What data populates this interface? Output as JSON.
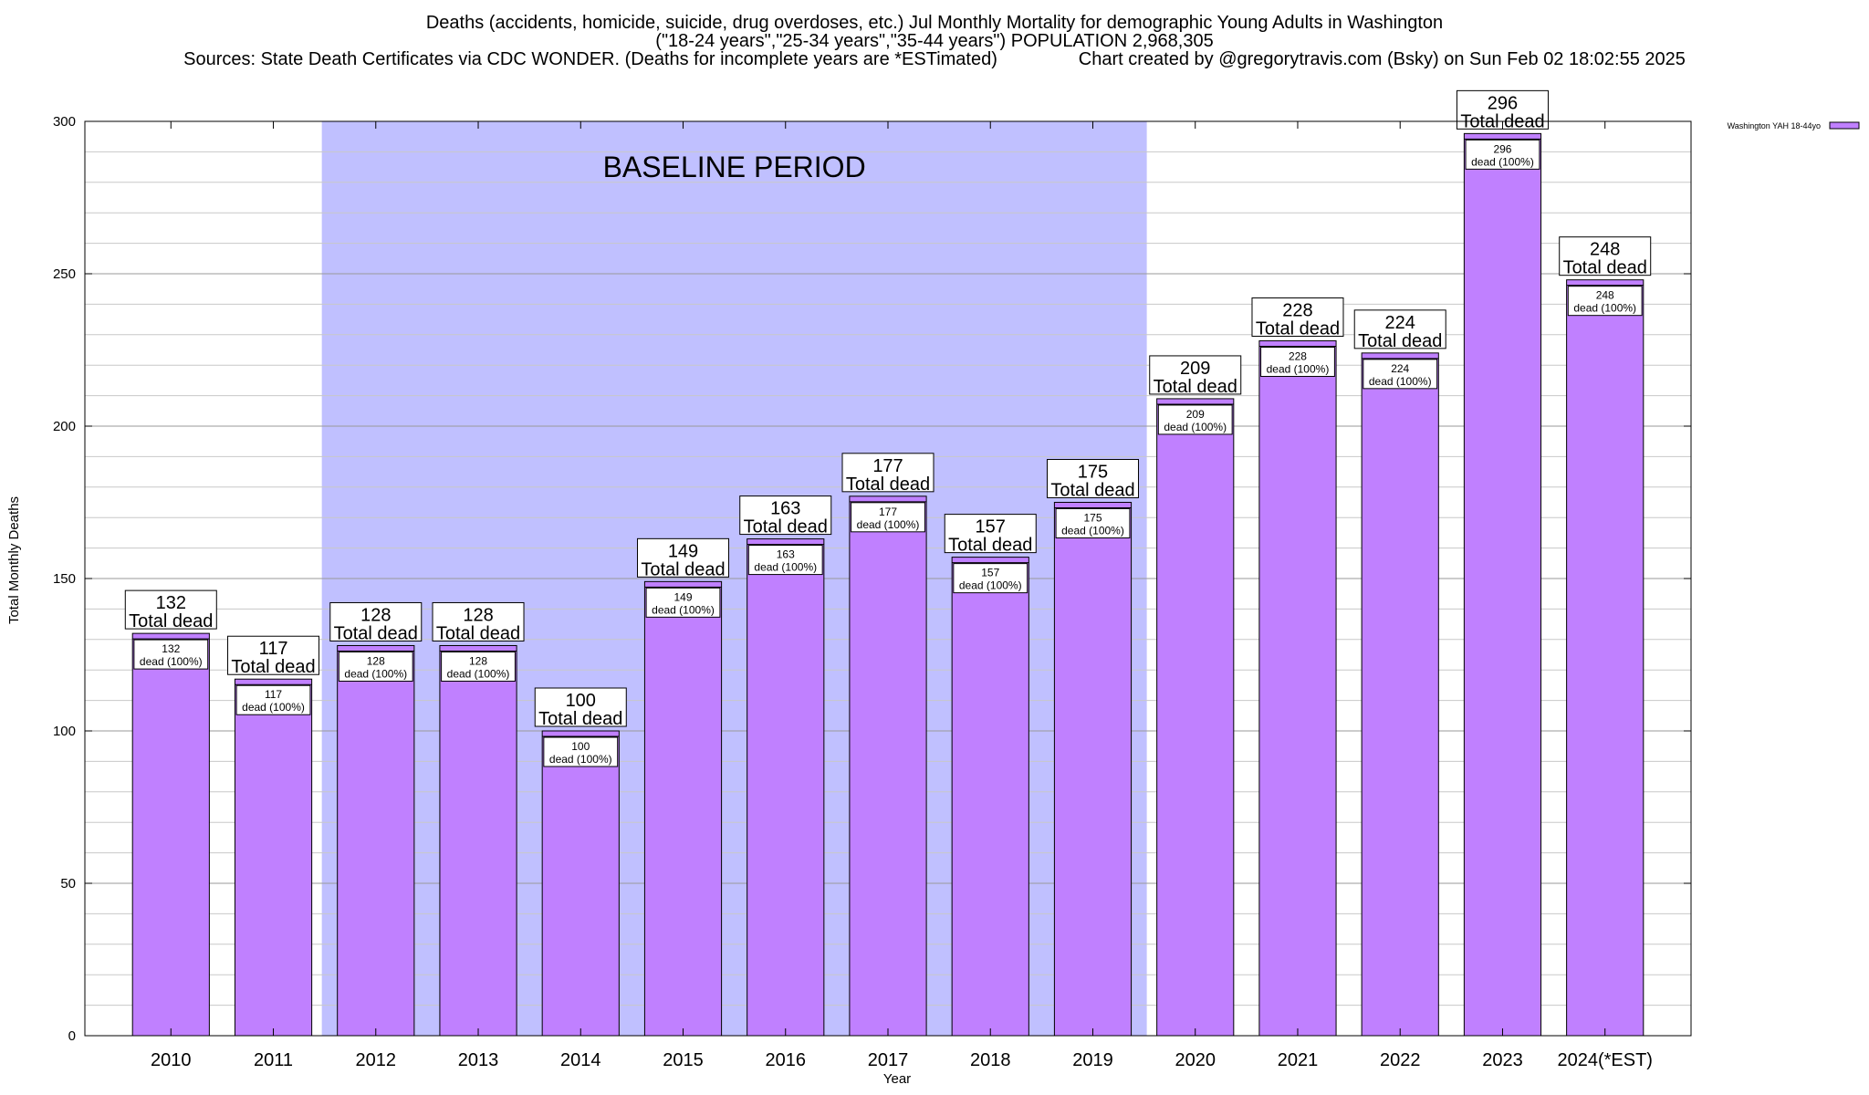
{
  "header": {
    "title_line1": "Deaths (accidents, homicide, suicide, drug overdoses, etc.) Jul Monthly Mortality for demographic Young Adults in Washington",
    "title_line2": "(\"18-24 years\",\"25-34 years\",\"35-44 years\") POPULATION 2,968,305",
    "title_line3": "Sources: State Death Certificates via CDC WONDER. (Deaths for incomplete years are *ESTimated)                Chart created by @gregorytravis.com (Bsky) on Sun Feb 02 18:02:55 2025"
  },
  "chart_data": {
    "type": "bar",
    "xlabel": "Year",
    "ylabel": "Total Monthly Deaths",
    "ylim": [
      0,
      300
    ],
    "yticks": [
      0,
      50,
      100,
      150,
      200,
      250,
      300
    ],
    "grid": true,
    "categories": [
      "2010",
      "2011",
      "2012",
      "2013",
      "2014",
      "2015",
      "2016",
      "2017",
      "2018",
      "2019",
      "2020",
      "2021",
      "2022",
      "2023",
      "2024(*EST)"
    ],
    "series": [
      {
        "name": "Washington YAH 18-44yo",
        "color": "#c080ff",
        "values": [
          132,
          117,
          128,
          128,
          100,
          149,
          163,
          177,
          157,
          175,
          209,
          228,
          224,
          296,
          248
        ]
      }
    ],
    "total_label_suffix": "Total dead",
    "inner_label_suffix": "dead (100%)",
    "baseline_period": {
      "label": "BASELINE PERIOD",
      "from": "2012",
      "to": "2019",
      "color": "#c0c0ff"
    },
    "legend_position": "top-right"
  }
}
